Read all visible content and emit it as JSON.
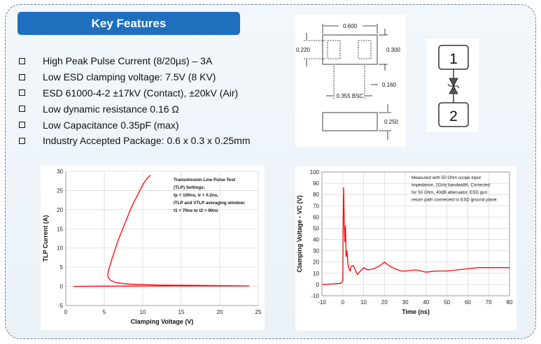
{
  "header": {
    "title": "Key Features"
  },
  "features": [
    "High Peak Pulse Current (8/20µs) – 3A",
    "Low ESD clamping voltage: 7.5V (8 KV)",
    "ESD 61000-4-2 ±17kV (Contact), ±20kV (Air)",
    "Low dynamic resistance 0.16 Ω",
    "Low Capacitance 0.35pF (max)",
    "Industry Accepted Package: 0.6 x 0.3 x 0.25mm"
  ],
  "package_drawing": {
    "dims": {
      "width": "0.600",
      "height": "0.300",
      "pad": "0.220",
      "pitch": "0.355 BSC",
      "pad_w": "0.160",
      "thickness": "0.250"
    }
  },
  "symbol": {
    "pin1": "1",
    "pin2": "2"
  },
  "colors": {
    "header_bg": "#1f6fbf",
    "curve": "#ff0000"
  },
  "chart_data": [
    {
      "type": "line",
      "xlabel": "Clamping Voltage (V)",
      "ylabel": "TLP Current (A)",
      "xlim": [
        0,
        25
      ],
      "ylim": [
        -5,
        30
      ],
      "xticks": [
        "0",
        "5",
        "10",
        "15",
        "20",
        "25"
      ],
      "yticks": [
        "-5",
        "0",
        "5",
        "10",
        "15",
        "20",
        "25",
        "30"
      ],
      "grid": true,
      "annotation": [
        "Transmission Line Pulse Test",
        "(TLP) Settings:",
        "tp = 100ns, tr = 0.2ns,",
        "ITLP and VTLP averaging window:",
        "t1 = 70ns to t2 = 90ns"
      ],
      "series": [
        {
          "x": [
            1.0,
            5.0,
            10.0,
            15.0,
            20.0,
            23.8,
            20.0,
            12.0,
            8.0,
            6.5,
            5.8,
            5.5,
            5.45,
            5.6,
            5.9,
            6.3,
            6.8,
            7.3,
            7.7,
            8.1,
            8.5,
            9.0,
            9.5,
            10.0,
            10.5,
            11.0
          ],
          "y": [
            0.0,
            0.05,
            0.08,
            0.1,
            0.1,
            0.1,
            0.2,
            0.35,
            0.6,
            1.0,
            1.6,
            2.4,
            3.2,
            4.5,
            6.5,
            9.0,
            12.0,
            14.5,
            16.5,
            18.5,
            20.5,
            22.5,
            24.5,
            26.5,
            28.0,
            29.0
          ]
        }
      ]
    },
    {
      "type": "line",
      "xlabel": "Time (ns)",
      "ylabel": "Clamping Voltage - VC (V)",
      "xlim": [
        -10,
        80
      ],
      "ylim": [
        -10,
        100
      ],
      "xticks": [
        "-10",
        "0",
        "10",
        "20",
        "30",
        "40",
        "50",
        "60",
        "70",
        "80"
      ],
      "yticks": [
        "-10",
        "0",
        "10",
        "20",
        "30",
        "40",
        "50",
        "60",
        "70",
        "80",
        "90",
        "100"
      ],
      "grid": true,
      "annotation": [
        "Measured with 50 Ohm scope input",
        "impedance, 2GHz bandwidth. Corrected",
        "for 50 Ohm, 40dB attenuator. ESD gun",
        "return path connected to ESD ground plane."
      ],
      "series": [
        {
          "x": [
            -10,
            -5,
            -1,
            0,
            0.2,
            0.4,
            0.7,
            1,
            1.3,
            1.6,
            2,
            2.5,
            3,
            3.5,
            4,
            5,
            6,
            7,
            8,
            10,
            12,
            15,
            18,
            20,
            22,
            25,
            28,
            30,
            35,
            40,
            45,
            50,
            55,
            60,
            65,
            70,
            75,
            80
          ],
          "y": [
            0,
            0.5,
            1,
            3,
            60,
            86,
            55,
            38,
            52,
            25,
            30,
            18,
            14,
            12,
            16,
            17,
            13,
            9,
            11,
            15,
            13,
            14,
            17,
            20,
            17,
            14,
            12,
            12,
            13,
            11,
            12,
            12,
            13,
            14,
            15,
            15,
            15,
            15
          ]
        }
      ]
    }
  ]
}
